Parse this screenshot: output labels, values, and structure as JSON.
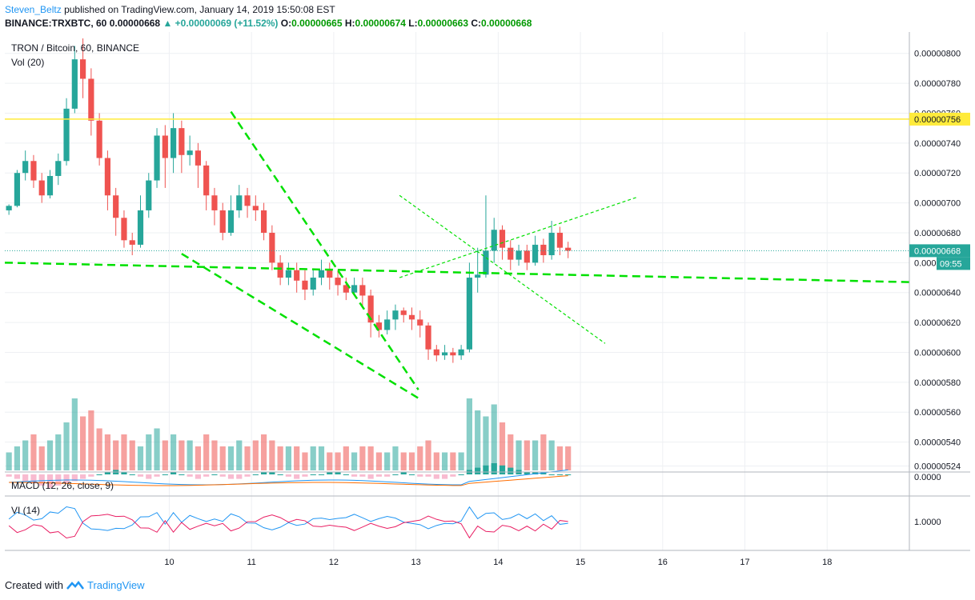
{
  "header": {
    "author": "Steven_Beltz",
    "published_text": "published on TradingView.com, January 14, 2019 15:50:08 EST",
    "symbol_line": "BINANCE:TRXBTC, 60",
    "last": "0.00000668",
    "change": "▲ +0.00000069 (+11.52%)",
    "o_label": "O:",
    "o": "0.00000665",
    "h_label": "H:",
    "h": "0.00000674",
    "l_label": "L:",
    "l": "0.00000663",
    "c_label": "C:",
    "c": "0.00000668"
  },
  "chart_data": {
    "type": "candlestick",
    "title": "TRON / Bitcoin, 60, BINANCE",
    "volume_label": "Vol (20)",
    "macd_label": "MACD (12, 26, close, 9)",
    "vi_label": "VI (14)",
    "price_ticks": [
      "0.00000800",
      "0.00000780",
      "0.00000760",
      "0.00000740",
      "0.00000720",
      "0.00000700",
      "0.00000680",
      "0.00000660",
      "0.00000640",
      "0.00000620",
      "0.00000600",
      "0.00000580",
      "0.00000560",
      "0.00000540",
      "0.00000524"
    ],
    "price_tick_values": [
      8.0,
      7.8,
      7.6,
      7.4,
      7.2,
      7.0,
      6.8,
      6.6,
      6.4,
      6.2,
      6.0,
      5.8,
      5.6,
      5.4,
      5.24
    ],
    "ylim": [
      5.2,
      8.1
    ],
    "y_unit_scale": "1e-6",
    "x_ticks": [
      "10",
      "11",
      "12",
      "13",
      "14",
      "15",
      "16",
      "17",
      "18"
    ],
    "x_tick_index": [
      20,
      30,
      40,
      50,
      60,
      70,
      80,
      90,
      100
    ],
    "xlim": [
      0,
      110
    ],
    "horizontal_line": {
      "value": 7.56,
      "label": "0.00000756",
      "color": "#ffeb3b"
    },
    "last_price": {
      "value": 6.68,
      "label": "0.00000668",
      "countdown": "09:55"
    },
    "macd_tick": "0.0000",
    "vi_tick": "1.0000",
    "candles": [
      [
        6.95,
        6.98,
        6.92,
        6.99
      ],
      [
        6.98,
        7.2,
        6.97,
        7.22
      ],
      [
        7.2,
        7.28,
        7.15,
        7.35
      ],
      [
        7.28,
        7.15,
        7.1,
        7.32
      ],
      [
        7.15,
        7.05,
        7.0,
        7.2
      ],
      [
        7.05,
        7.18,
        7.03,
        7.22
      ],
      [
        7.18,
        7.28,
        7.12,
        7.33
      ],
      [
        7.28,
        7.63,
        7.25,
        7.7
      ],
      [
        7.63,
        7.96,
        7.6,
        8.05
      ],
      [
        7.96,
        7.83,
        7.7,
        8.1
      ],
      [
        7.83,
        7.55,
        7.45,
        7.9
      ],
      [
        7.55,
        7.3,
        7.25,
        7.6
      ],
      [
        7.3,
        7.05,
        6.95,
        7.35
      ],
      [
        7.05,
        6.9,
        6.78,
        7.1
      ],
      [
        6.9,
        6.75,
        6.7,
        6.95
      ],
      [
        6.75,
        6.72,
        6.65,
        6.8
      ],
      [
        6.72,
        6.95,
        6.7,
        7.05
      ],
      [
        6.95,
        7.15,
        6.9,
        7.2
      ],
      [
        7.15,
        7.45,
        7.1,
        7.5
      ],
      [
        7.45,
        7.3,
        7.1,
        7.52
      ],
      [
        7.3,
        7.5,
        7.2,
        7.6
      ],
      [
        7.5,
        7.32,
        7.2,
        7.55
      ],
      [
        7.32,
        7.35,
        7.25,
        7.45
      ],
      [
        7.35,
        7.25,
        7.1,
        7.4
      ],
      [
        7.25,
        7.05,
        6.95,
        7.28
      ],
      [
        7.05,
        6.95,
        6.85,
        7.1
      ],
      [
        6.95,
        6.8,
        6.75,
        7.0
      ],
      [
        6.8,
        6.95,
        6.78,
        7.05
      ],
      [
        6.95,
        7.05,
        6.9,
        7.12
      ],
      [
        7.05,
        6.98,
        6.9,
        7.1
      ],
      [
        6.98,
        6.95,
        6.88,
        7.05
      ],
      [
        6.95,
        6.8,
        6.75,
        7.0
      ],
      [
        6.8,
        6.6,
        6.55,
        6.85
      ],
      [
        6.6,
        6.5,
        6.45,
        6.65
      ],
      [
        6.5,
        6.55,
        6.45,
        6.6
      ],
      [
        6.55,
        6.48,
        6.4,
        6.6
      ],
      [
        6.48,
        6.42,
        6.35,
        6.55
      ],
      [
        6.42,
        6.5,
        6.38,
        6.55
      ],
      [
        6.5,
        6.55,
        6.45,
        6.62
      ],
      [
        6.55,
        6.5,
        6.42,
        6.6
      ],
      [
        6.5,
        6.45,
        6.38,
        6.55
      ],
      [
        6.45,
        6.4,
        6.35,
        6.5
      ],
      [
        6.4,
        6.45,
        6.38,
        6.5
      ],
      [
        6.45,
        6.38,
        6.3,
        6.5
      ],
      [
        6.38,
        6.2,
        6.1,
        6.42
      ],
      [
        6.2,
        6.15,
        6.1,
        6.25
      ],
      [
        6.15,
        6.22,
        6.12,
        6.28
      ],
      [
        6.22,
        6.28,
        6.15,
        6.32
      ],
      [
        6.28,
        6.25,
        6.2,
        6.3
      ],
      [
        6.25,
        6.22,
        6.15,
        6.3
      ],
      [
        6.22,
        6.18,
        6.1,
        6.28
      ],
      [
        6.18,
        6.02,
        5.95,
        6.2
      ],
      [
        6.02,
        5.98,
        5.94,
        6.05
      ],
      [
        5.98,
        6.0,
        5.95,
        6.05
      ],
      [
        6.0,
        5.98,
        5.93,
        6.03
      ],
      [
        5.98,
        6.02,
        5.95,
        6.05
      ],
      [
        6.02,
        6.5,
        6.0,
        6.6
      ],
      [
        6.5,
        6.52,
        6.4,
        6.7
      ],
      [
        6.52,
        6.68,
        6.5,
        7.05
      ],
      [
        6.68,
        6.82,
        6.6,
        6.9
      ],
      [
        6.82,
        6.7,
        6.62,
        6.85
      ],
      [
        6.7,
        6.62,
        6.55,
        6.75
      ],
      [
        6.62,
        6.68,
        6.58,
        6.72
      ],
      [
        6.68,
        6.6,
        6.55,
        6.72
      ],
      [
        6.6,
        6.72,
        6.58,
        6.78
      ],
      [
        6.72,
        6.65,
        6.6,
        6.76
      ],
      [
        6.65,
        6.8,
        6.62,
        6.88
      ],
      [
        6.8,
        6.7,
        6.65,
        6.84
      ],
      [
        6.7,
        6.68,
        6.63,
        6.74
      ]
    ],
    "volumes": [
      3,
      4,
      5,
      6,
      4,
      5,
      6,
      8,
      12,
      9,
      10,
      7,
      6,
      5,
      6,
      5,
      4,
      6,
      7,
      5,
      6,
      5,
      5,
      4,
      6,
      5,
      4,
      4,
      5,
      4,
      5,
      6,
      5,
      4,
      4,
      4,
      3,
      4,
      4,
      3,
      3,
      4,
      3,
      4,
      4,
      3,
      3,
      4,
      3,
      3,
      4,
      5,
      3,
      3,
      3,
      3,
      12,
      10,
      9,
      11,
      8,
      6,
      5,
      5,
      5,
      6,
      5,
      4,
      4
    ],
    "macd": [
      -1,
      -2,
      -3,
      -4,
      -5,
      -6,
      -5,
      -4,
      -3,
      -2,
      -1,
      0,
      1,
      2,
      1,
      0,
      -1,
      -2,
      -1,
      0,
      1,
      0,
      -1,
      -2,
      -1,
      0,
      -1,
      -2,
      -2,
      -1,
      0,
      1,
      1,
      0,
      -1,
      -2,
      -1,
      0,
      0,
      1,
      1,
      0,
      -1,
      -1,
      -2,
      -1,
      -1,
      0,
      1,
      0,
      -1,
      -1,
      -2,
      -2,
      -1,
      0,
      2,
      3,
      4,
      5,
      4,
      3,
      2,
      1,
      1,
      1,
      0,
      0,
      0
    ],
    "trendlines": [
      {
        "from": [
          27.5,
          7.61
        ],
        "to": [
          50.3,
          5.75
        ],
        "style": "dashed",
        "note": "upper wedge"
      },
      {
        "from": [
          21.5,
          6.66
        ],
        "to": [
          50.7,
          5.68
        ],
        "style": "dashed",
        "note": "lower wedge"
      },
      {
        "from": [
          0,
          6.6
        ],
        "to": [
          110,
          6.47
        ],
        "style": "dashed",
        "note": "long horizontal support"
      },
      {
        "from": [
          48,
          7.05
        ],
        "to": [
          73,
          6.06
        ],
        "style": "dotted",
        "note": "descending"
      },
      {
        "from": [
          48,
          6.5
        ],
        "to": [
          77,
          7.04
        ],
        "style": "dotted",
        "note": "ascending"
      }
    ],
    "colors": {
      "up": "#26a69a",
      "down": "#ef5350",
      "trend": "#00e000",
      "macd": "#2196f3",
      "signal": "#ff6d00",
      "vi_plus": "#2196f3",
      "vi_minus": "#e91e63",
      "hline": "#ffeb3b",
      "last_price": "#26a69a"
    }
  },
  "footer": {
    "created_with": "Created with",
    "brand": "TradingView"
  }
}
